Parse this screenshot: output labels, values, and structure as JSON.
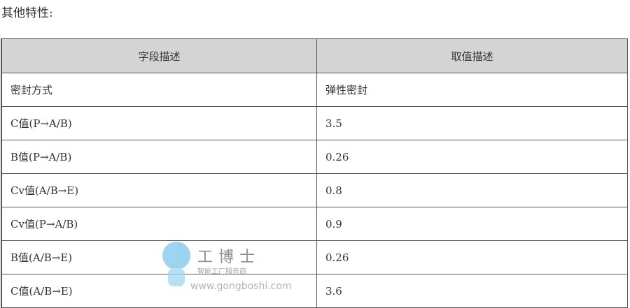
{
  "title": "其他特性:",
  "table": {
    "headers": [
      "字段描述",
      "取值描述"
    ],
    "rows": [
      [
        "密封方式",
        "弹性密封"
      ],
      [
        "C值(P→A/B)",
        "3.5"
      ],
      [
        "B值(P→A/B)",
        "0.26"
      ],
      [
        "Cv值(A/B→E)",
        "0.8"
      ],
      [
        "Cv值(P→A/B)",
        "0.9"
      ],
      [
        "B值(A/B→E)",
        "0.26"
      ],
      [
        "C值(A/B→E)",
        "3.6"
      ]
    ]
  },
  "watermark": {
    "brand": "工博士",
    "slogan": "智能工厂服务商",
    "url": "www.gongboshi.com"
  }
}
